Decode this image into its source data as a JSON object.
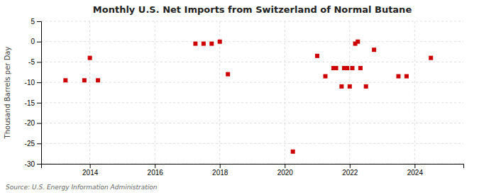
{
  "chart_data": {
    "type": "scatter",
    "title": "Monthly U.S. Net Imports from Switzerland of Normal Butane",
    "ylabel": "Thousand Barrels per Day",
    "source": "Source: U.S. Energy Information Administration",
    "x": [
      2013.25,
      2013.83,
      2014.0,
      2014.25,
      2017.25,
      2017.5,
      2017.75,
      2018.0,
      2018.25,
      2020.25,
      2021.0,
      2021.25,
      2021.5,
      2021.58,
      2021.75,
      2021.83,
      2021.92,
      2022.0,
      2022.08,
      2022.17,
      2022.25,
      2022.33,
      2022.5,
      2022.75,
      2023.5,
      2023.75,
      2024.5
    ],
    "values": [
      -9.5,
      -9.5,
      -4.0,
      -9.5,
      -0.5,
      -0.5,
      -0.5,
      0.0,
      -8.0,
      -27.0,
      -3.5,
      -8.5,
      -6.5,
      -6.5,
      -11.0,
      -6.5,
      -6.5,
      -11.0,
      -6.5,
      -0.5,
      0.0,
      -6.5,
      -11.0,
      -2.0,
      -8.5,
      -8.5,
      -4.0
    ],
    "color": "#cc0000",
    "marker": "square",
    "xlim": [
      2012.5,
      2025.5
    ],
    "xticks": [
      2014,
      2016,
      2018,
      2020,
      2022,
      2024
    ],
    "ylim": [
      -30,
      5
    ],
    "yticks": [
      5,
      0,
      -5,
      -10,
      -15,
      -20,
      -25,
      -30
    ],
    "grid": true
  }
}
